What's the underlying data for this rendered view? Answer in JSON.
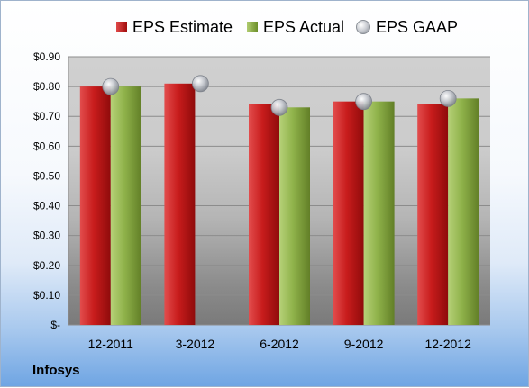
{
  "company_label": "Infosys",
  "legend": {
    "estimate": "EPS Estimate",
    "actual": "EPS Actual",
    "gaap": "EPS GAAP"
  },
  "colors": {
    "estimate": "#c41a1a",
    "actual": "#8caf45",
    "gaap": "#b9bcc2"
  },
  "chart_data": {
    "type": "bar",
    "title": "",
    "xlabel": "",
    "ylabel": "",
    "ylim": [
      0,
      0.9
    ],
    "grid": true,
    "legend_position": "top",
    "categories": [
      "12-2011",
      "3-2012",
      "6-2012",
      "9-2012",
      "12-2012"
    ],
    "y_tick_values": [
      0,
      0.1,
      0.2,
      0.3,
      0.4,
      0.5,
      0.6,
      0.7,
      0.8,
      0.9
    ],
    "y_tick_labels": [
      "$-",
      "$0.10",
      "$0.20",
      "$0.30",
      "$0.40",
      "$0.50",
      "$0.60",
      "$0.70",
      "$0.80",
      "$0.90"
    ],
    "series": [
      {
        "name": "EPS Estimate",
        "type": "bar",
        "values": [
          0.8,
          0.81,
          0.74,
          0.75,
          0.74
        ]
      },
      {
        "name": "EPS Actual",
        "type": "bar",
        "values": [
          0.8,
          null,
          0.73,
          0.75,
          0.76
        ]
      },
      {
        "name": "EPS GAAP",
        "type": "scatter",
        "values": [
          0.8,
          0.81,
          0.73,
          0.75,
          0.76
        ]
      }
    ]
  }
}
